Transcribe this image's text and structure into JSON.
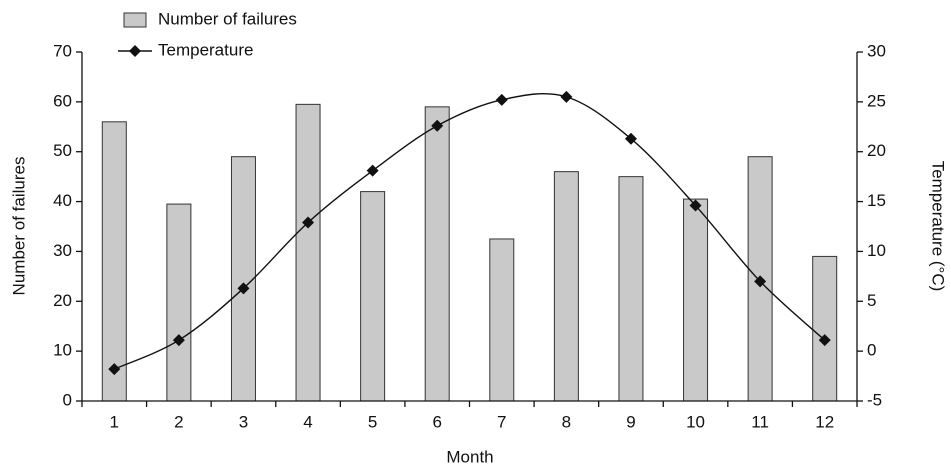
{
  "chart_data": {
    "type": "bar",
    "x_label": "Month",
    "y_label": "Number of failures",
    "y2_label": "Temperature (°C)",
    "categories": [
      "1",
      "2",
      "3",
      "4",
      "5",
      "6",
      "7",
      "8",
      "9",
      "10",
      "11",
      "12"
    ],
    "series": [
      {
        "name": "Number of failures",
        "type": "bar",
        "color": "#c9c9c9",
        "values": [
          56,
          39.5,
          49,
          59.5,
          42,
          59,
          32.5,
          46,
          45,
          40.5,
          49,
          29
        ]
      },
      {
        "name": "Temperature",
        "type": "line",
        "axis": "y2",
        "color": "#111111",
        "values": [
          -1.8,
          1.1,
          6.3,
          12.9,
          18.1,
          22.6,
          25.2,
          25.5,
          21.3,
          14.6,
          7.0,
          1.1
        ]
      }
    ],
    "ylim": [
      0,
      70
    ],
    "yticks": [
      0,
      10,
      20,
      30,
      40,
      50,
      60,
      70
    ],
    "y2lim": [
      -5,
      30
    ],
    "y2ticks": [
      -5,
      0,
      5,
      10,
      15,
      20,
      25,
      30
    ],
    "grid": false
  }
}
